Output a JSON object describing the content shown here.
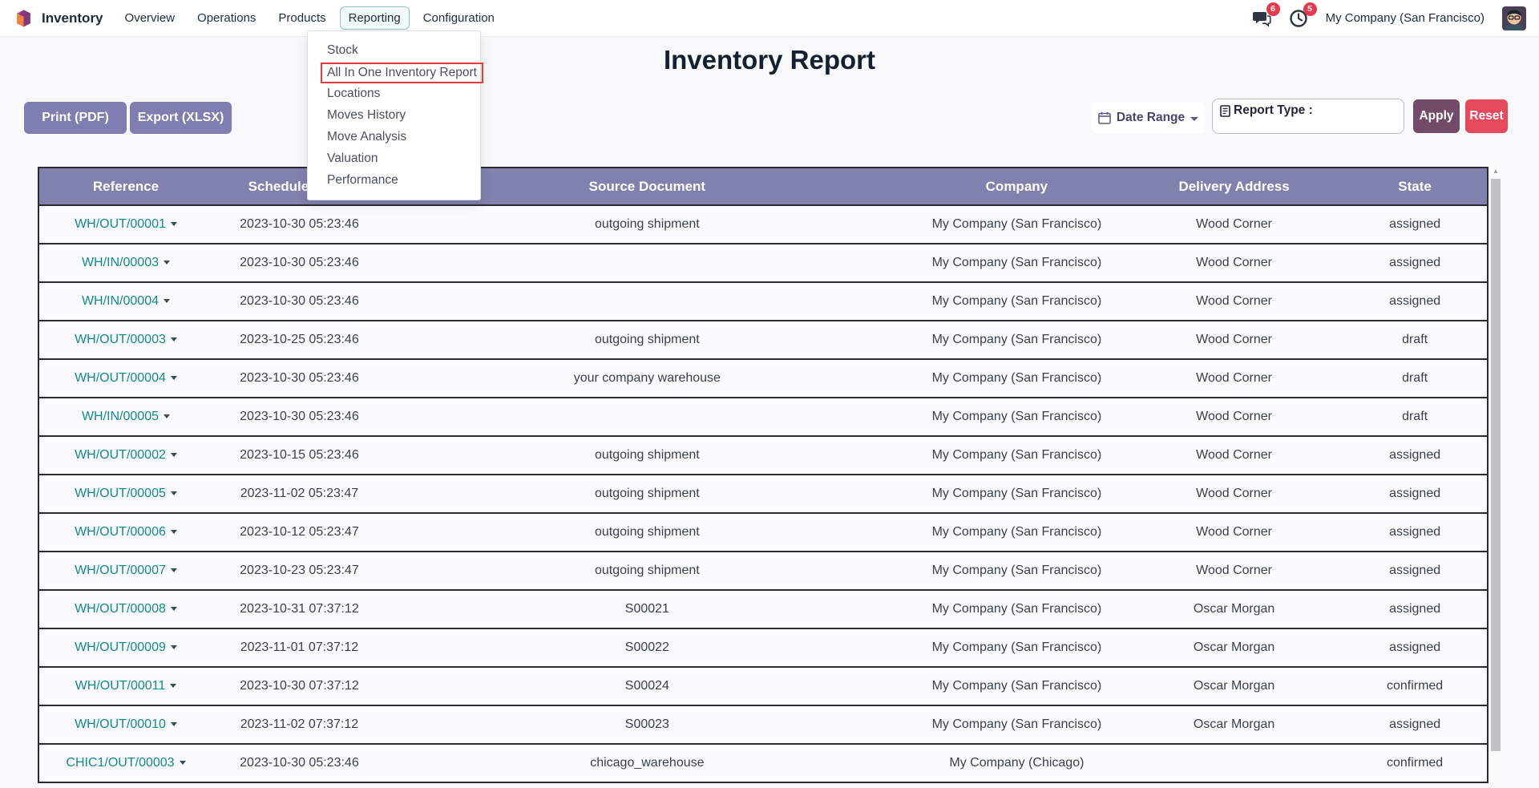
{
  "nav": {
    "app_name": "Inventory",
    "items": [
      "Overview",
      "Operations",
      "Products",
      "Reporting",
      "Configuration"
    ],
    "active_item": "Reporting",
    "messages_badge": "6",
    "activities_badge": "5",
    "company": "My Company (San Francisco)"
  },
  "reporting_menu": {
    "items": [
      "Stock",
      "All In One Inventory Report",
      "Locations",
      "Moves History",
      "Move Analysis",
      "Valuation",
      "Performance"
    ],
    "highlighted": "All In One Inventory Report"
  },
  "page": {
    "title": "Inventory Report",
    "print_label": "Print (PDF)",
    "export_label": "Export (XLSX)",
    "date_range_label": "Date Range",
    "report_type_label": "Report Type :",
    "apply_label": "Apply",
    "reset_label": "Reset"
  },
  "table": {
    "headers": [
      "Reference",
      "Scheduled Date",
      "Source Document",
      "Company",
      "Delivery Address",
      "State"
    ],
    "rows": [
      [
        "WH/OUT/00001",
        "2023-10-30 05:23:46",
        "outgoing shipment",
        "My Company (San Francisco)",
        "Wood Corner",
        "assigned"
      ],
      [
        "WH/IN/00003",
        "2023-10-30 05:23:46",
        "",
        "My Company (San Francisco)",
        "Wood Corner",
        "assigned"
      ],
      [
        "WH/IN/00004",
        "2023-10-30 05:23:46",
        "",
        "My Company (San Francisco)",
        "Wood Corner",
        "assigned"
      ],
      [
        "WH/OUT/00003",
        "2023-10-25 05:23:46",
        "outgoing shipment",
        "My Company (San Francisco)",
        "Wood Corner",
        "draft"
      ],
      [
        "WH/OUT/00004",
        "2023-10-30 05:23:46",
        "your company warehouse",
        "My Company (San Francisco)",
        "Wood Corner",
        "draft"
      ],
      [
        "WH/IN/00005",
        "2023-10-30 05:23:46",
        "",
        "My Company (San Francisco)",
        "Wood Corner",
        "draft"
      ],
      [
        "WH/OUT/00002",
        "2023-10-15 05:23:46",
        "outgoing shipment",
        "My Company (San Francisco)",
        "Wood Corner",
        "assigned"
      ],
      [
        "WH/OUT/00005",
        "2023-11-02 05:23:47",
        "outgoing shipment",
        "My Company (San Francisco)",
        "Wood Corner",
        "assigned"
      ],
      [
        "WH/OUT/00006",
        "2023-10-12 05:23:47",
        "outgoing shipment",
        "My Company (San Francisco)",
        "Wood Corner",
        "assigned"
      ],
      [
        "WH/OUT/00007",
        "2023-10-23 05:23:47",
        "outgoing shipment",
        "My Company (San Francisco)",
        "Wood Corner",
        "assigned"
      ],
      [
        "WH/OUT/00008",
        "2023-10-31 07:37:12",
        "S00021",
        "My Company (San Francisco)",
        "Oscar Morgan",
        "assigned"
      ],
      [
        "WH/OUT/00009",
        "2023-11-01 07:37:12",
        "S00022",
        "My Company (San Francisco)",
        "Oscar Morgan",
        "assigned"
      ],
      [
        "WH/OUT/00011",
        "2023-10-30 07:37:12",
        "S00024",
        "My Company (San Francisco)",
        "Oscar Morgan",
        "confirmed"
      ],
      [
        "WH/OUT/00010",
        "2023-11-02 07:37:12",
        "S00023",
        "My Company (San Francisco)",
        "Oscar Morgan",
        "assigned"
      ],
      [
        "CHIC1/OUT/00003",
        "2023-10-30 05:23:46",
        "chicago_warehouse",
        "My Company (Chicago)",
        "",
        "confirmed"
      ]
    ]
  },
  "colors": {
    "table_header_bg": "#8181ad",
    "primary_button": "#7f7eb1",
    "apply_button": "#714b67",
    "reset_button": "#e7495c",
    "badge_red": "#e5394f",
    "reference_teal": "#0e8a90",
    "highlight_red_border": "#e43d3d",
    "active_tab_border": "#93c4c0"
  }
}
